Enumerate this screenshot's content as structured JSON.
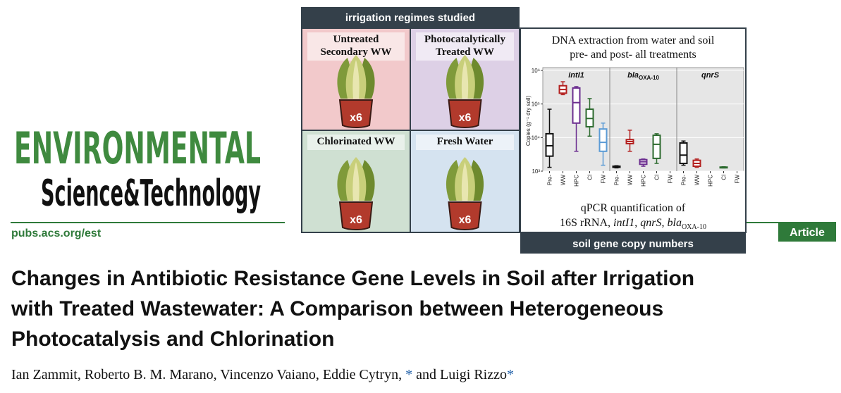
{
  "header": {
    "logo_line1": "ENVIRONMENTAL",
    "logo_line2": "Science&Technology",
    "url": "pubs.acs.org/est",
    "article_type": "Article"
  },
  "graphical_abstract": {
    "left_header": "irrigation regimes studied",
    "quadrants": [
      {
        "label_lines": [
          "Untreated",
          "Secondary WW"
        ],
        "count": "x6"
      },
      {
        "label_lines": [
          "Photocatalytically",
          "Treated WW"
        ],
        "count": "x6"
      },
      {
        "label_lines": [
          "Chlorinated WW"
        ],
        "count": "x6"
      },
      {
        "label_lines": [
          "Fresh Water"
        ],
        "count": "x6"
      }
    ],
    "right_top_lines": [
      "DNA extraction from water and soil",
      "pre- and post- all treatments"
    ],
    "right_bottom_line1": "qPCR quantification of",
    "right_bottom_parts": [
      "16S rRNA, ",
      "intI1",
      ", ",
      "qnrS",
      ", ",
      "bla",
      "OXA-10"
    ],
    "right_footer": "soil gene copy numbers"
  },
  "chart_data": {
    "type": "box",
    "ylabel": "Copies (g⁻¹ dry soil)",
    "log": true,
    "ylim": [
      1000,
      1000000
    ],
    "yticks": [
      {
        "value": 1000,
        "label": "10³"
      },
      {
        "value": 10000,
        "label": "10⁴"
      },
      {
        "value": 100000,
        "label": "10⁵"
      },
      {
        "value": 1000000,
        "label": "10⁶"
      }
    ],
    "grid": true,
    "categories": [
      "Pre-",
      "WW",
      "HPC",
      "Cl",
      "FW"
    ],
    "colors": [
      "#111111",
      "#b3201f",
      "#6b2d8f",
      "#2d6b2f",
      "#5b9bd5"
    ],
    "panels": [
      {
        "title": "intI1",
        "boxes": [
          {
            "min": 1300,
            "q1": 2800,
            "median": 5700,
            "q3": 13000,
            "max": 70000
          },
          {
            "min": 190000,
            "q1": 210000,
            "median": 270000,
            "q3": 350000,
            "max": 460000
          },
          {
            "min": 3900,
            "q1": 27000,
            "median": 110000,
            "q3": 300000,
            "max": 330000
          },
          {
            "min": 11000,
            "q1": 21000,
            "median": 37000,
            "q3": 70000,
            "max": 145000
          },
          {
            "min": 1500,
            "q1": 3900,
            "median": 7200,
            "q3": 18000,
            "max": 27000
          }
        ]
      },
      {
        "title": "bla",
        "subscript": "OXA-10",
        "boxes": [
          {
            "min": 1250,
            "q1": 1300,
            "median": 1350,
            "q3": 1400,
            "max": 1450
          },
          {
            "min": 3900,
            "q1": 6600,
            "median": 7600,
            "q3": 8700,
            "max": 16600
          },
          {
            "min": 1400,
            "q1": 1600,
            "median": 1900,
            "q3": 2200,
            "max": 2300
          },
          {
            "min": 1700,
            "q1": 2400,
            "median": 6300,
            "q3": 11700,
            "max": 13000
          },
          null
        ]
      },
      {
        "title": "qnrS",
        "boxes": [
          {
            "min": 1500,
            "q1": 1700,
            "median": 3000,
            "q3": 6900,
            "max": 7900
          },
          {
            "min": 1300,
            "q1": 1400,
            "median": 1700,
            "q3": 2100,
            "max": 2300
          },
          null,
          {
            "min": 1250,
            "q1": 1280,
            "median": 1300,
            "q3": 1320,
            "max": 1350
          },
          null
        ]
      }
    ]
  },
  "article": {
    "title_lines": [
      "Changes in Antibiotic Resistance Gene Levels in Soil after Irrigation",
      "with Treated Wastewater: A Comparison between Heterogeneous",
      "Photocatalysis and Chlorination"
    ],
    "authors": [
      "Ian Zammit",
      "Roberto B. M. Marano",
      "Vincenzo Vaiano",
      "Eddie Cytryn",
      "Luigi Rizzo"
    ],
    "separator": ", ",
    "conjunction": " and ",
    "corresponding_mark": "*"
  }
}
